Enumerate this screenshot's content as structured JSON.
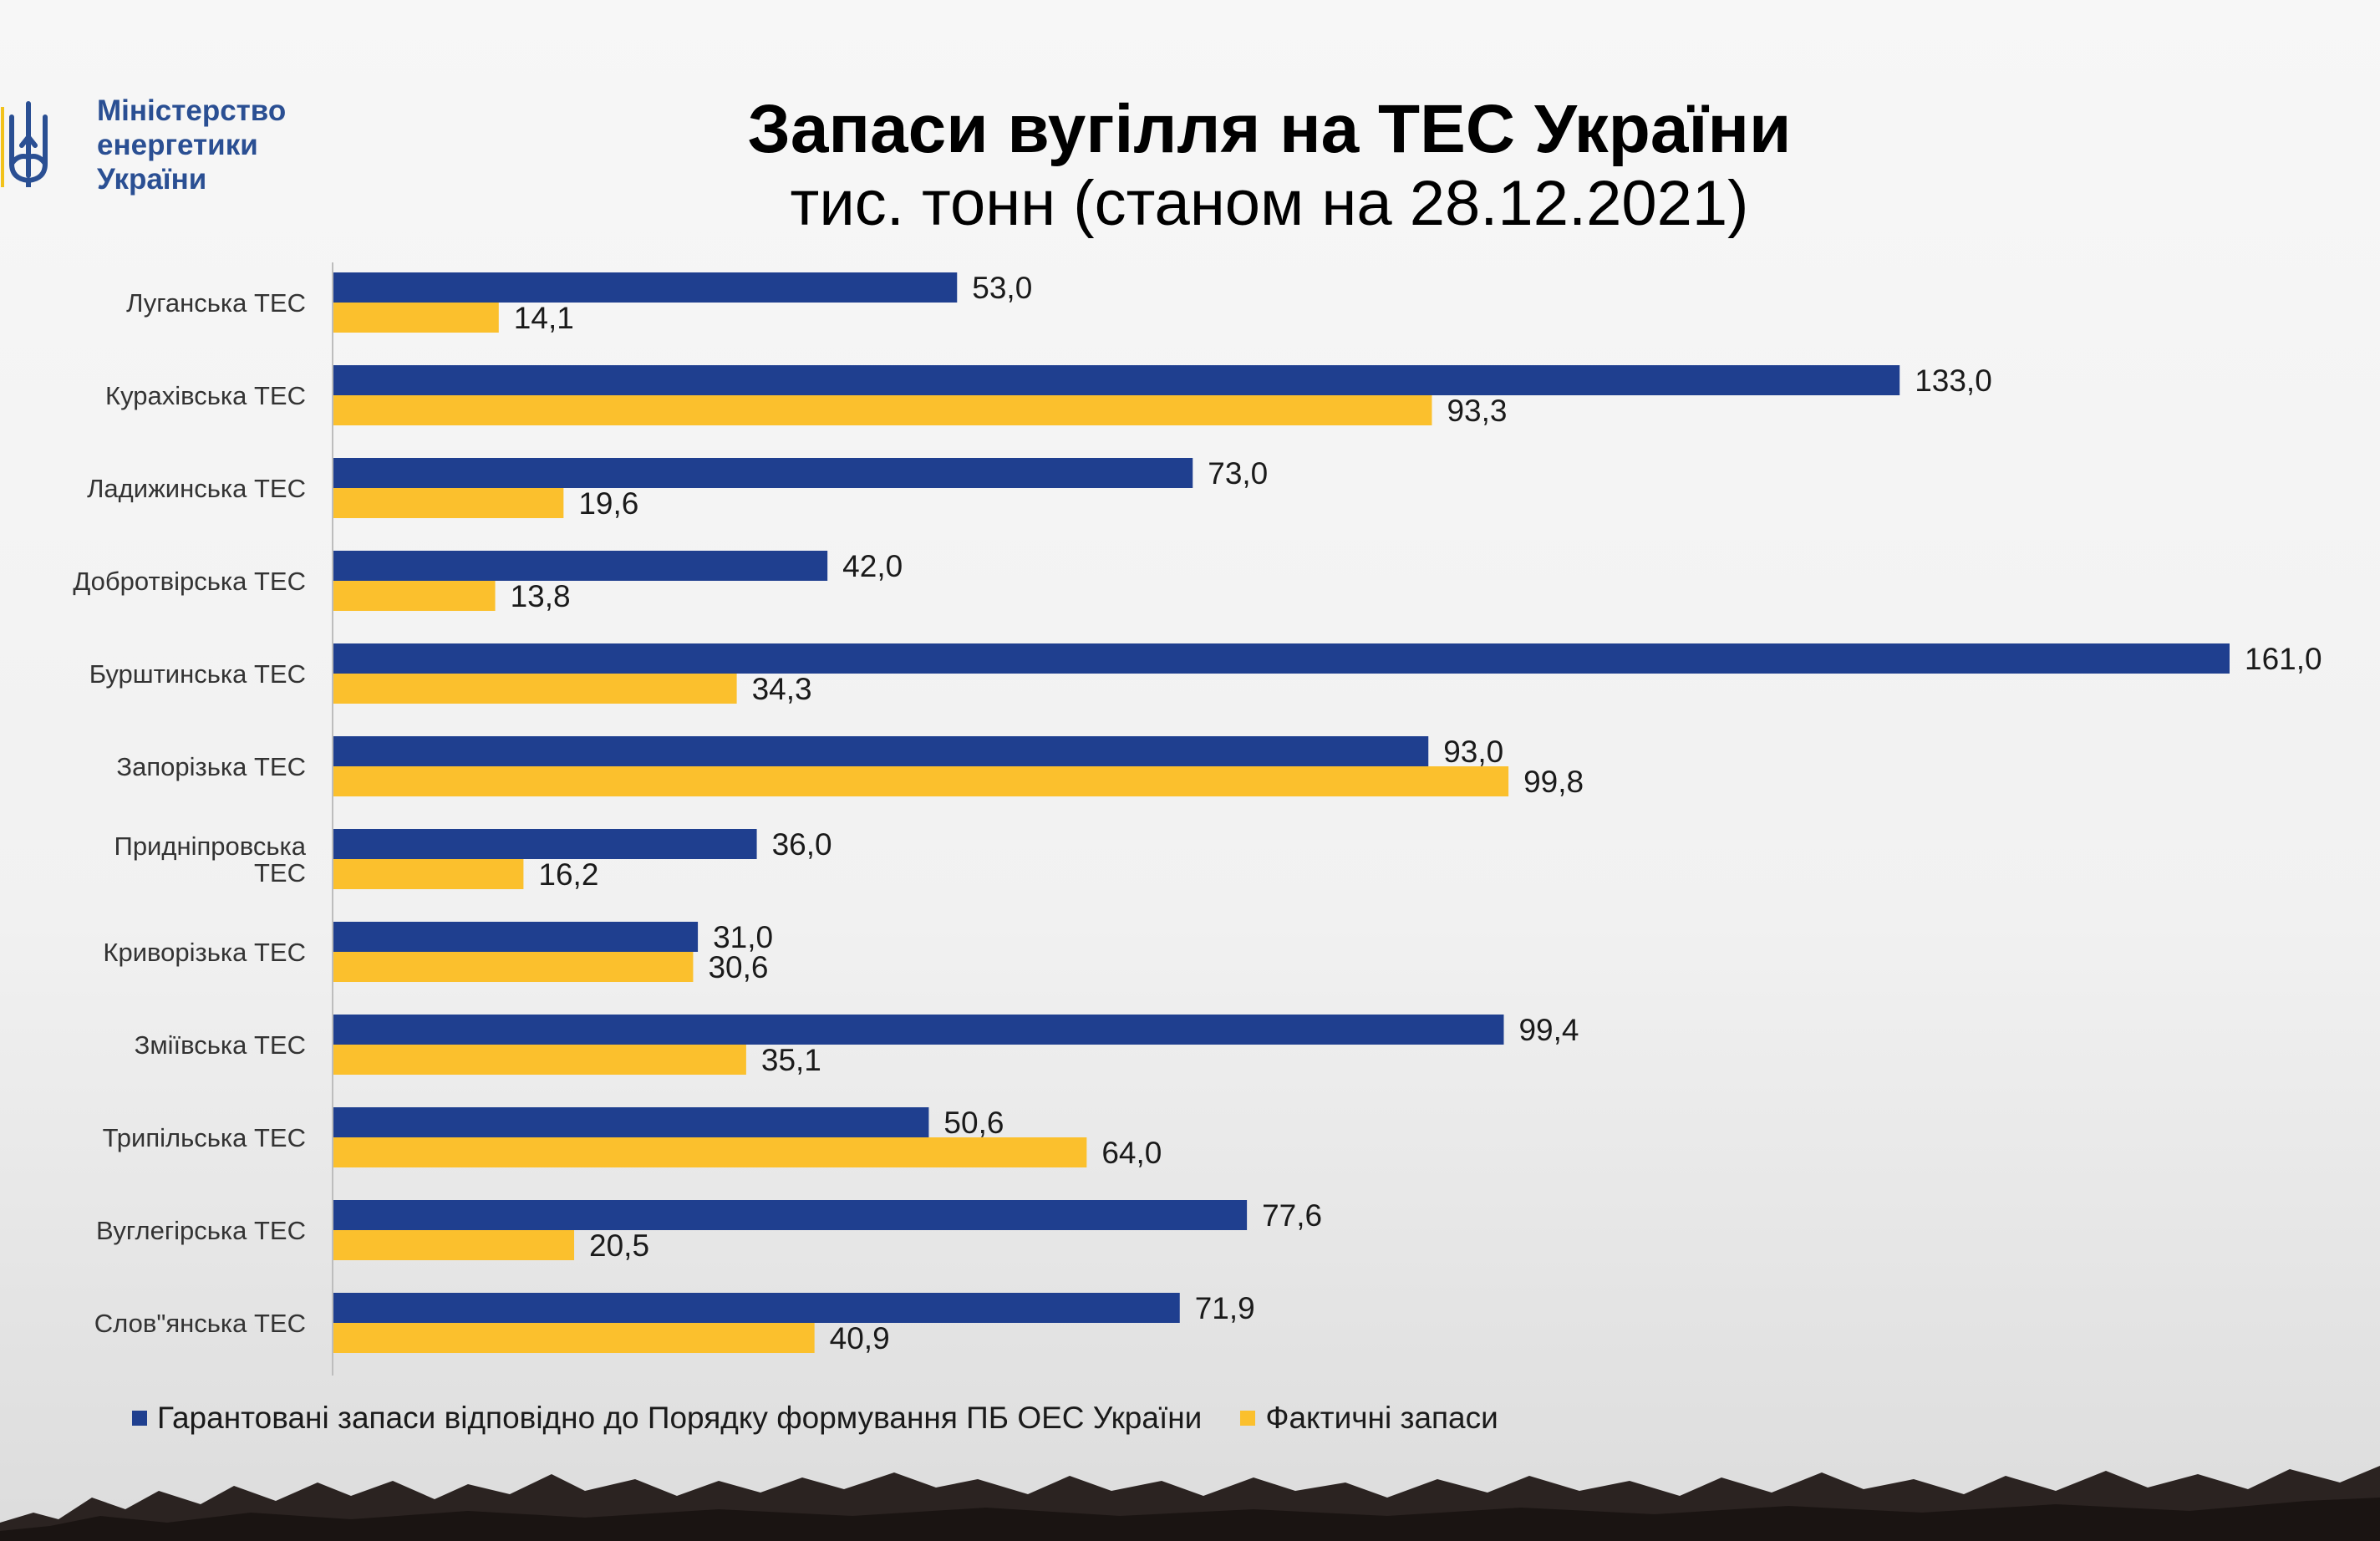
{
  "logo": {
    "lines": [
      "Міністерство",
      "енергетики",
      "України"
    ],
    "icon": "tryzub-icon",
    "color": "#2a4f93",
    "accent": "#f2c21b"
  },
  "colors": {
    "guaranteed": "#1f3f8f",
    "actual": "#fbc02d"
  },
  "chart_data": {
    "type": "bar",
    "orientation": "horizontal",
    "title": "Запаси вугілля на ТЕС України",
    "subtitle": "тис. тонн (станом на 28.12.2021)",
    "xlim": [
      0,
      161
    ],
    "grid": false,
    "legend": "bottom",
    "categories": [
      "Луганська ТЕС",
      "Курахівська ТЕС",
      "Ладижинська ТЕС",
      "Добротвірська ТЕС",
      "Бурштинська ТЕС",
      "Запорізька ТЕС",
      "Придніпровська ТЕС",
      "Криворізька ТЕС",
      "Зміївська ТЕС",
      "Трипільська ТЕС",
      "Вуглегірська ТЕС",
      "Слов\"янська ТЕС"
    ],
    "category_lines": [
      [
        "Луганська ТЕС"
      ],
      [
        "Курахівська ТЕС"
      ],
      [
        "Ладижинська ТЕС"
      ],
      [
        "Добротвірська ТЕС"
      ],
      [
        "Бурштинська ТЕС"
      ],
      [
        "Запорізька ТЕС"
      ],
      [
        "Придніпровська",
        "ТЕС"
      ],
      [
        "Криворізька ТЕС"
      ],
      [
        "Зміївська ТЕС"
      ],
      [
        "Трипільська ТЕС"
      ],
      [
        "Вуглегірська ТЕС"
      ],
      [
        "Слов\"янська ТЕС"
      ]
    ],
    "series": [
      {
        "name": "Гарантовані запаси відповідно до Порядку формування ПБ ОЕС України",
        "values": [
          53.0,
          133.0,
          73.0,
          42.0,
          161.0,
          93.0,
          36.0,
          31.0,
          99.4,
          50.6,
          77.6,
          71.9
        ],
        "labels": [
          "53,0",
          "133,0",
          "73,0",
          "42,0",
          "161,0",
          "93,0",
          "36,0",
          "31,0",
          "99,4",
          "50,6",
          "77,6",
          "71,9"
        ]
      },
      {
        "name": "Фактичні запаси",
        "values": [
          14.1,
          93.3,
          19.6,
          13.8,
          34.3,
          99.8,
          16.2,
          30.6,
          35.1,
          64.0,
          20.5,
          40.9
        ],
        "labels": [
          "14,1",
          "93,3",
          "19,6",
          "13,8",
          "34,3",
          "99,8",
          "16,2",
          "30,6",
          "35,1",
          "64,0",
          "20,5",
          "40,9"
        ]
      }
    ]
  }
}
